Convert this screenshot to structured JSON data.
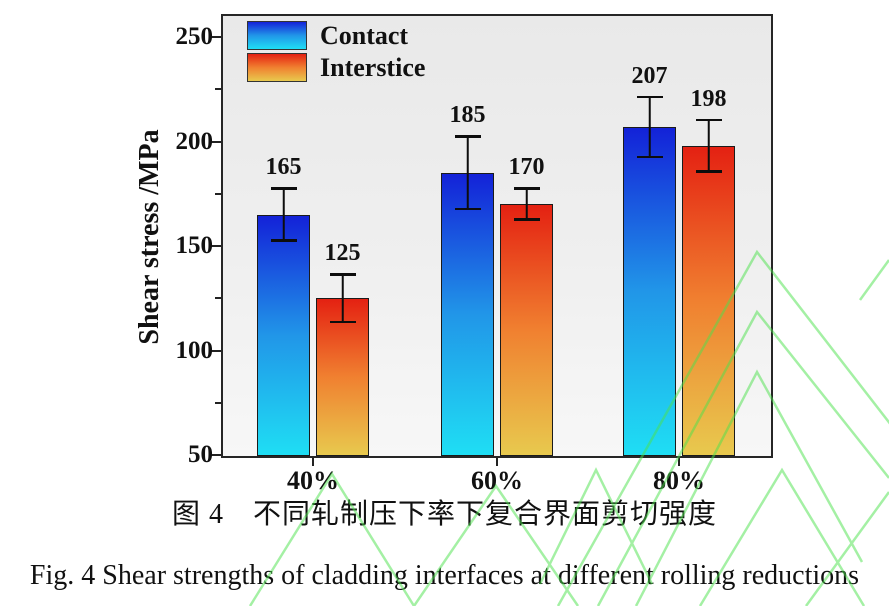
{
  "figure": {
    "caption_zh": "图 4　不同轧制压下率下复合界面剪切强度",
    "caption_en": "Fig. 4 Shear strengths of cladding interfaces at different rolling reductions"
  },
  "chart_data": {
    "type": "bar",
    "title": "",
    "categories": [
      "40%",
      "60%",
      "80%"
    ],
    "series": [
      {
        "name": "Contact",
        "values": [
          165,
          185,
          207
        ],
        "errors": [
          13,
          18,
          15
        ],
        "gradient": [
          "#1322d8",
          "#2196e8",
          "#1fdef4"
        ]
      },
      {
        "name": "Interstice",
        "values": [
          125,
          170,
          198
        ],
        "errors": [
          12,
          8,
          13
        ],
        "gradient": [
          "#e42112",
          "#f08030",
          "#e8c94e"
        ]
      }
    ],
    "xlabel": "",
    "ylabel": "Shear stress /MPa",
    "ylim": [
      50,
      259
    ],
    "yticks": [
      50,
      100,
      150,
      200,
      250
    ],
    "yticks_minor": [
      75,
      125,
      175,
      225
    ],
    "grid": false,
    "legend_position": "top-left",
    "value_labels": true
  },
  "colors": {
    "page_bg": "#ffffff",
    "plot_bg": "#ececec",
    "axis": "#262626",
    "text": "#111111",
    "error_bar": "#0d0d0d",
    "watermark": "#4ce24c"
  }
}
